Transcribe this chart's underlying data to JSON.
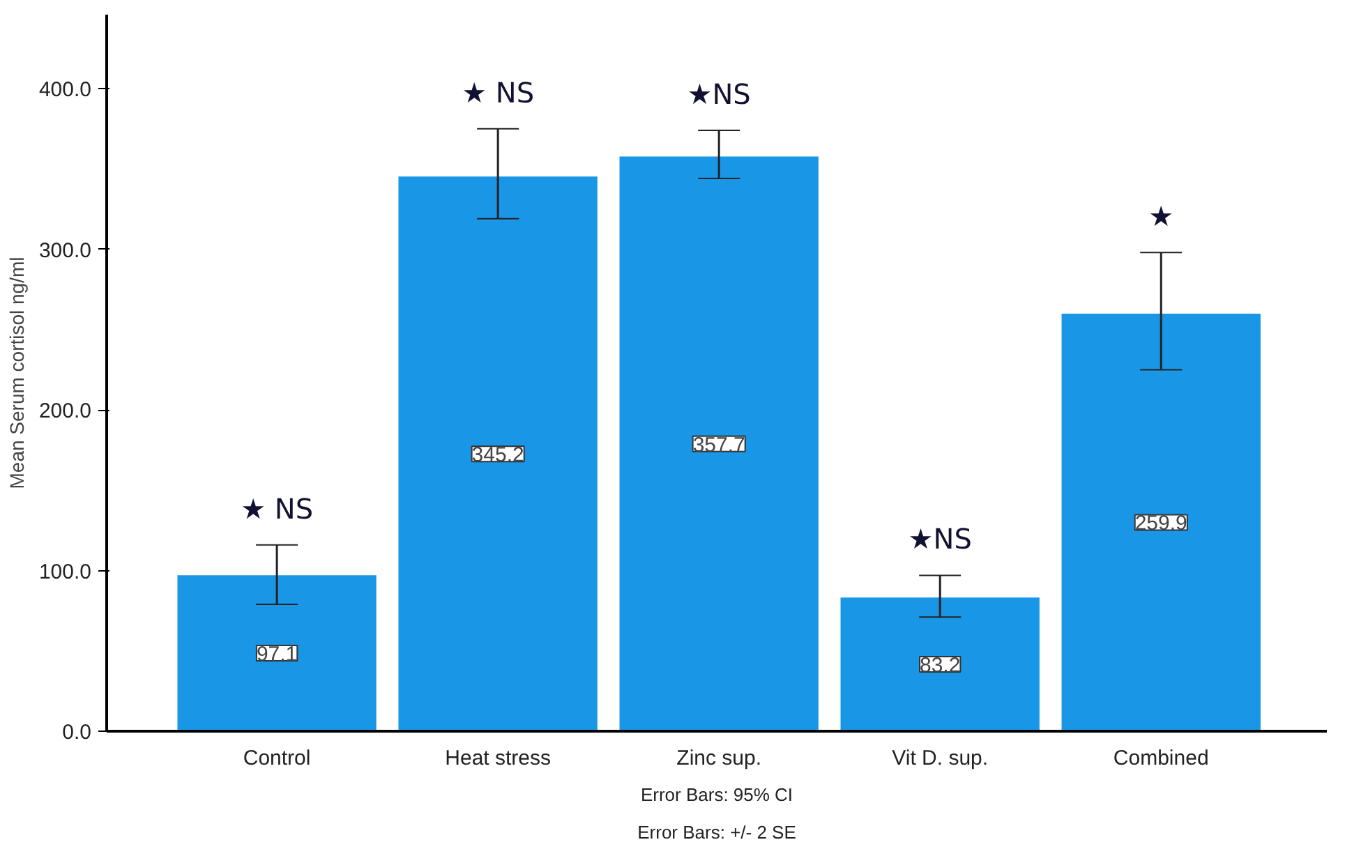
{
  "chart_data": {
    "type": "bar",
    "ylabel": "Mean Serum cortisol ng/ml",
    "categories": [
      "Control",
      "Heat stress",
      "Zinc sup.",
      "Vit D. sup.",
      "Combined"
    ],
    "values": [
      97.1,
      345.2,
      357.7,
      83.2,
      259.9
    ],
    "color": "#1a96e6",
    "errors": [
      [
        79,
        116
      ],
      [
        319,
        375
      ],
      [
        344,
        374
      ],
      [
        71,
        97
      ],
      [
        225,
        298
      ]
    ],
    "data_labels": true,
    "ylim": [
      0,
      446
    ],
    "yticks": [
      {
        "value": 0,
        "label": "0.0"
      },
      {
        "value": 100,
        "label": "100.0"
      },
      {
        "value": 200,
        "label": "200.0"
      },
      {
        "value": 300,
        "label": "300.0"
      },
      {
        "value": 400,
        "label": "400.0"
      }
    ],
    "grid": false,
    "annotations": [
      {
        "text": "★ NS",
        "x": "Control",
        "y": 116
      },
      {
        "text": "★ NS",
        "x": "Heat stress",
        "y": 375
      },
      {
        "text": "★NS",
        "x": "Zinc sup.",
        "y": 374
      },
      {
        "text": "★NS",
        "x": "Vit D. sup.",
        "y": 97
      },
      {
        "text": "★",
        "x": "Combined",
        "y": 298
      },
      "Error Bars: 95% CI",
      "Error Bars: +/- 2 SE"
    ]
  }
}
